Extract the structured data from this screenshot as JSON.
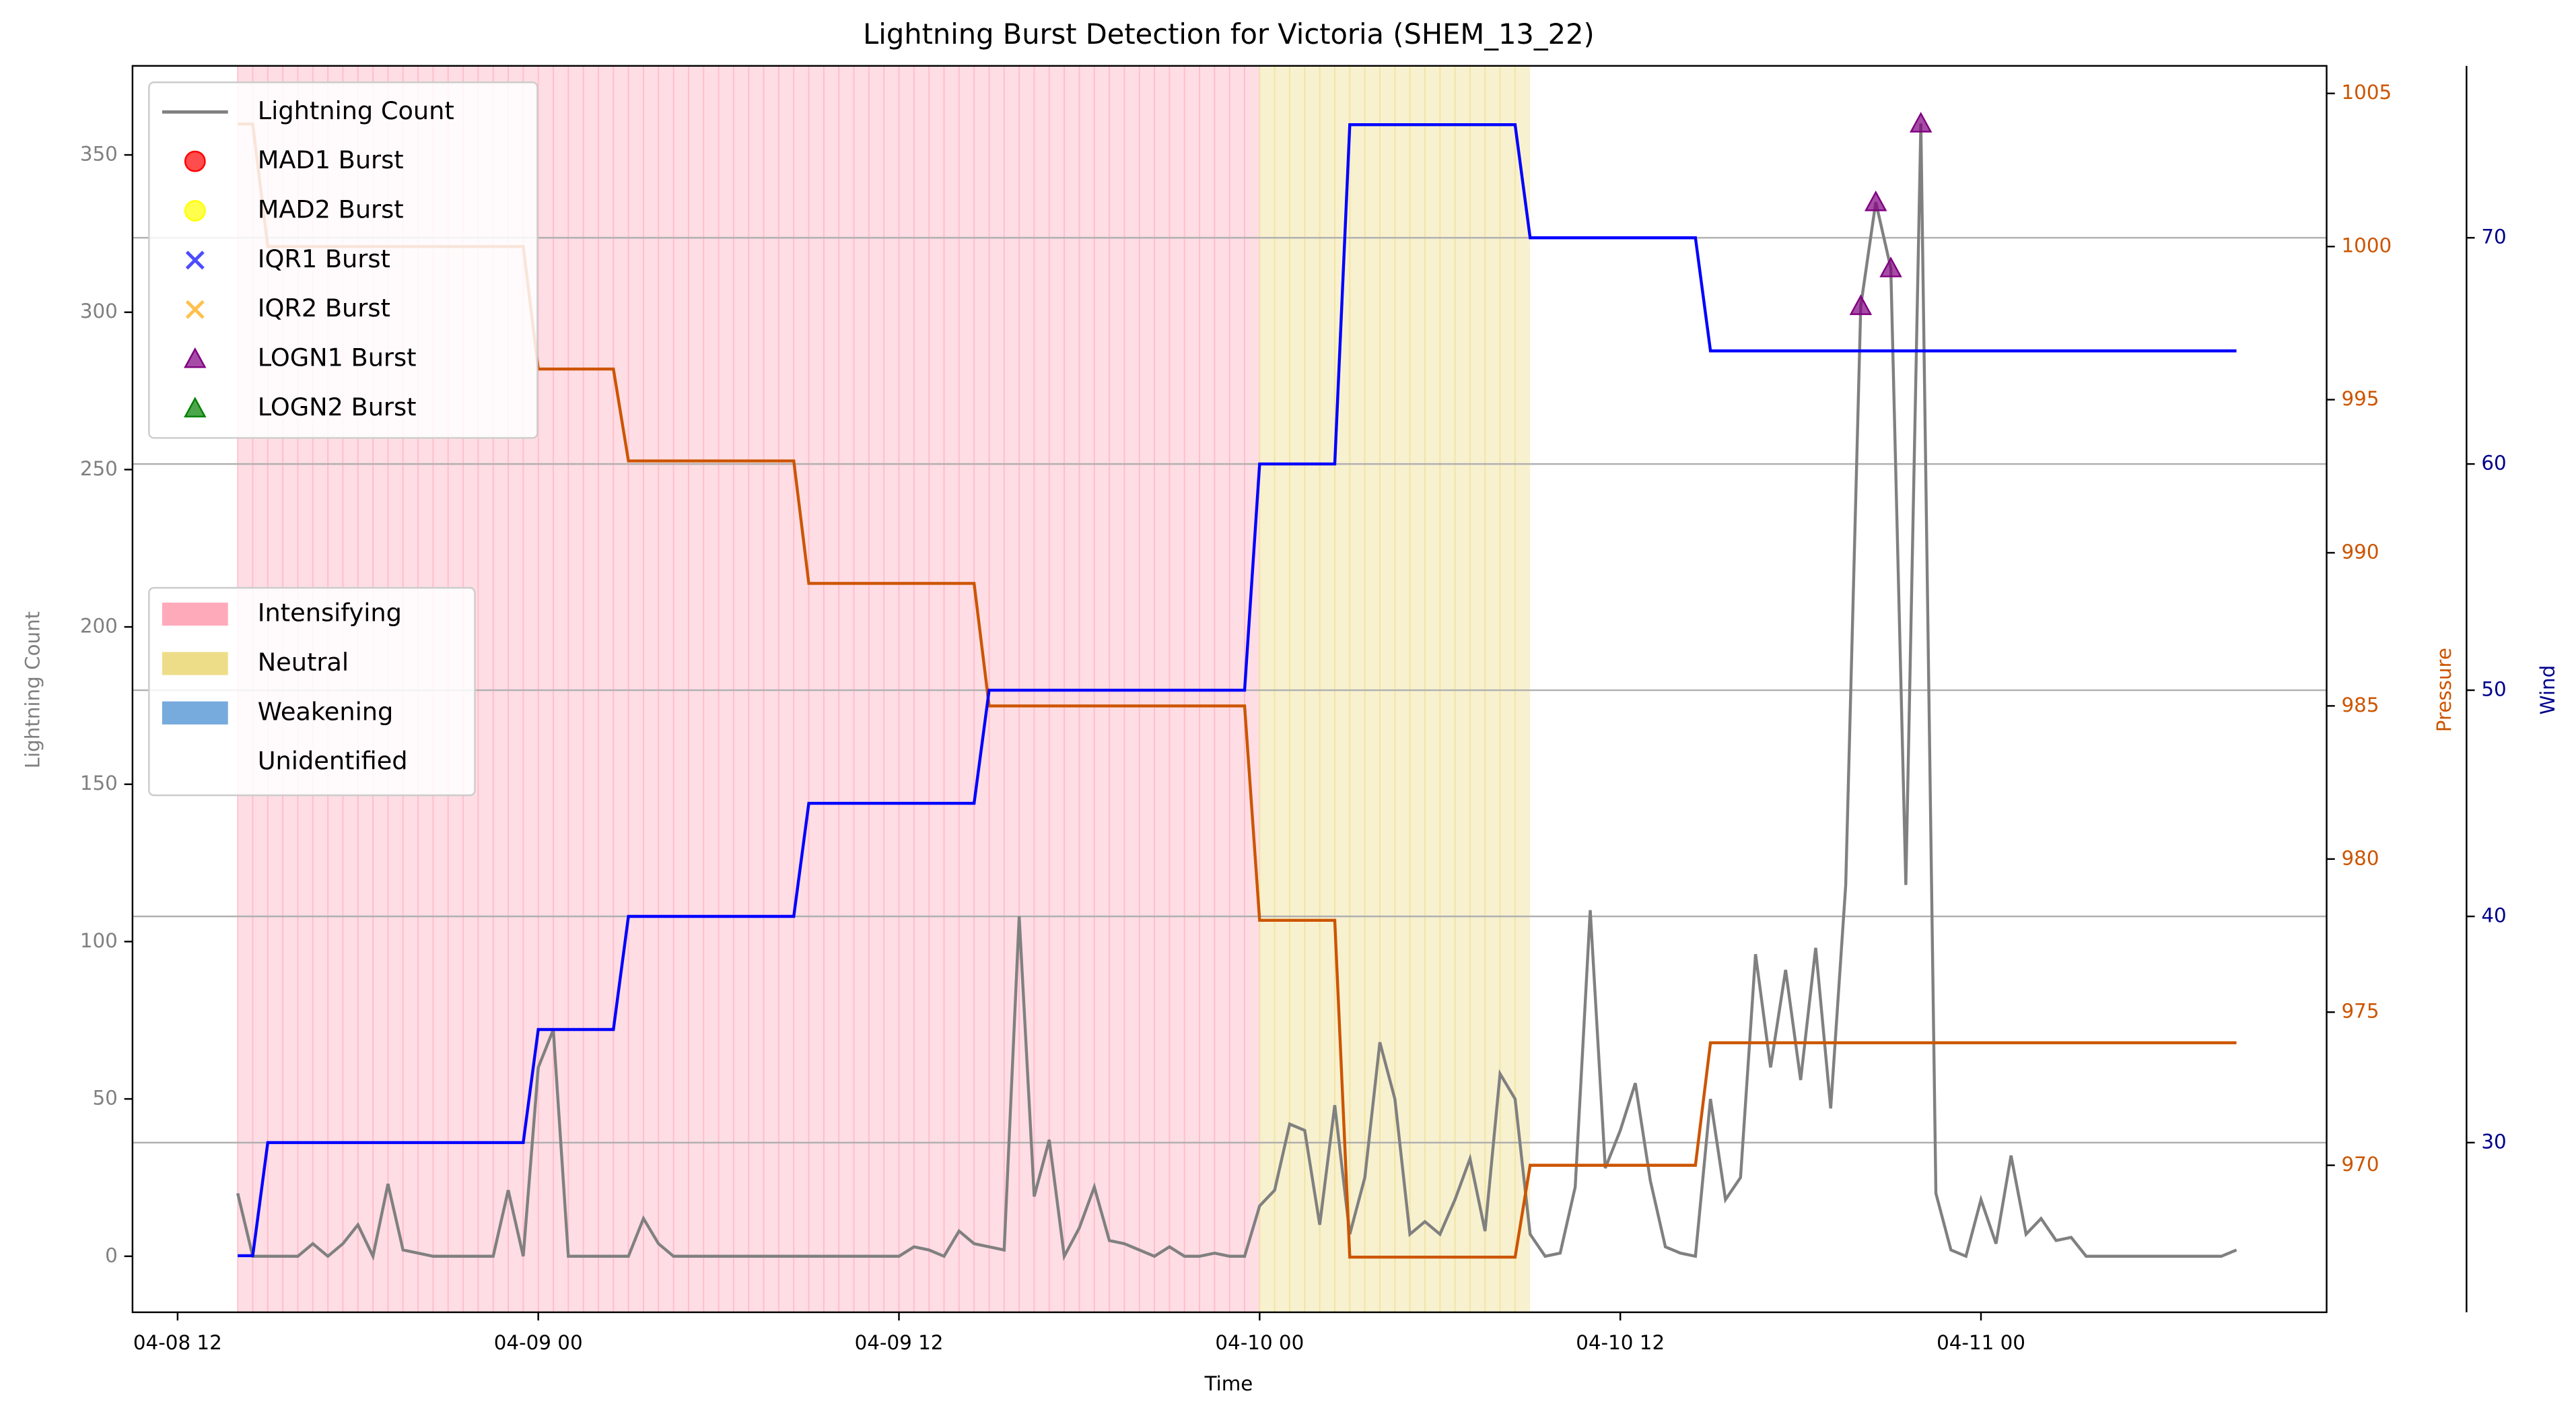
{
  "chart_data": {
    "type": "line",
    "title": "Lightning Burst Detection for Victoria (SHEM_13_22)",
    "xlabel": "Time",
    "ylabel": "Lightning Count",
    "y2label": "Pressure",
    "y3label": "Wind",
    "x": [
      "04-08 14:00",
      "04-08 14:30",
      "04-08 15:00",
      "04-08 15:30",
      "04-08 16:00",
      "04-08 16:30",
      "04-08 17:00",
      "04-08 17:30",
      "04-08 18:00",
      "04-08 18:30",
      "04-08 19:00",
      "04-08 19:30",
      "04-08 20:00",
      "04-08 20:30",
      "04-08 21:00",
      "04-08 21:30",
      "04-08 22:00",
      "04-08 22:30",
      "04-08 23:00",
      "04-08 23:30",
      "04-09 00:00",
      "04-09 00:30",
      "04-09 01:00",
      "04-09 01:30",
      "04-09 02:00",
      "04-09 02:30",
      "04-09 03:00",
      "04-09 03:30",
      "04-09 04:00",
      "04-09 04:30",
      "04-09 05:00",
      "04-09 05:30",
      "04-09 06:00",
      "04-09 06:30",
      "04-09 07:00",
      "04-09 07:30",
      "04-09 08:00",
      "04-09 08:30",
      "04-09 09:00",
      "04-09 09:30",
      "04-09 10:00",
      "04-09 10:30",
      "04-09 11:00",
      "04-09 11:30",
      "04-09 12:00",
      "04-09 12:30",
      "04-09 13:00",
      "04-09 13:30",
      "04-09 14:00",
      "04-09 14:30",
      "04-09 15:00",
      "04-09 15:30",
      "04-09 16:00",
      "04-09 16:30",
      "04-09 17:00",
      "04-09 17:30",
      "04-09 18:00",
      "04-09 18:30",
      "04-09 19:00",
      "04-09 19:30",
      "04-09 20:00",
      "04-09 20:30",
      "04-09 21:00",
      "04-09 21:30",
      "04-09 22:00",
      "04-09 22:30",
      "04-09 23:00",
      "04-09 23:30",
      "04-10 00:00",
      "04-10 00:30",
      "04-10 01:00",
      "04-10 01:30",
      "04-10 02:00",
      "04-10 02:30",
      "04-10 03:00",
      "04-10 03:30",
      "04-10 04:00",
      "04-10 04:30",
      "04-10 05:00",
      "04-10 05:30",
      "04-10 06:00",
      "04-10 06:30",
      "04-10 07:00",
      "04-10 07:30",
      "04-10 08:00",
      "04-10 08:30",
      "04-10 09:00",
      "04-10 09:30",
      "04-10 10:00",
      "04-10 10:30",
      "04-10 11:00",
      "04-10 11:30",
      "04-10 12:00",
      "04-10 12:30",
      "04-10 13:00",
      "04-10 13:30",
      "04-10 14:00",
      "04-10 14:30",
      "04-10 15:00",
      "04-10 15:30",
      "04-10 16:00",
      "04-10 16:30",
      "04-10 17:00",
      "04-10 17:30",
      "04-10 18:00",
      "04-10 18:30",
      "04-10 19:00",
      "04-10 19:30",
      "04-10 20:00",
      "04-10 20:30",
      "04-10 21:00",
      "04-10 21:30",
      "04-10 22:00",
      "04-10 22:30",
      "04-10 23:00",
      "04-10 23:30",
      "04-11 00:00",
      "04-11 00:30",
      "04-11 01:00",
      "04-11 01:30",
      "04-11 02:00",
      "04-11 02:30",
      "04-11 03:00",
      "04-11 03:30",
      "04-11 04:00",
      "04-11 04:30",
      "04-11 05:00",
      "04-11 05:30",
      "04-11 06:00",
      "04-11 06:30",
      "04-11 07:00",
      "04-11 07:30",
      "04-11 08:00",
      "04-11 08:30"
    ],
    "series": [
      {
        "name": "Lightning Count",
        "color": "#808080",
        "axis": "y",
        "values": [
          20,
          0,
          0,
          0,
          0,
          4,
          0,
          4,
          10,
          0,
          23,
          2,
          1,
          0,
          0,
          0,
          0,
          0,
          21,
          0,
          60,
          72,
          0,
          0,
          0,
          0,
          0,
          12,
          4,
          0,
          0,
          0,
          0,
          0,
          0,
          0,
          0,
          0,
          0,
          0,
          0,
          0,
          0,
          0,
          0,
          3,
          2,
          0,
          8,
          4,
          3,
          2,
          108,
          19,
          37,
          0,
          9,
          22,
          5,
          4,
          2,
          0,
          3,
          0,
          0,
          1,
          0,
          0,
          16,
          21,
          42,
          40,
          10,
          48,
          7,
          25,
          68,
          50,
          7,
          11,
          7,
          18,
          31,
          8,
          58,
          50,
          7,
          0,
          1,
          22,
          110,
          28,
          40,
          55,
          24,
          3,
          1,
          0,
          50,
          18,
          25,
          96,
          60,
          91,
          56,
          98,
          47,
          118,
          302,
          335,
          314,
          118,
          360,
          20,
          2,
          0,
          18,
          4,
          32,
          7,
          12,
          5,
          6,
          0,
          0,
          0,
          0,
          0,
          0,
          0,
          0,
          0,
          0,
          2
        ]
      },
      {
        "color": "#cc5500",
        "axis": "y2",
        "values": [
          1004,
          1004,
          1000,
          1000,
          1000,
          1000,
          1000,
          1000,
          1000,
          1000,
          1000,
          1000,
          1000,
          1000,
          1000,
          1000,
          1000,
          1000,
          1000,
          1000,
          996,
          996,
          996,
          996,
          996,
          996,
          993,
          993,
          993,
          993,
          993,
          993,
          993,
          993,
          993,
          993,
          993,
          993,
          989,
          989,
          989,
          989,
          989,
          989,
          989,
          989,
          989,
          989,
          989,
          989,
          985,
          985,
          985,
          985,
          985,
          985,
          985,
          985,
          985,
          985,
          985,
          985,
          985,
          985,
          985,
          985,
          985,
          985,
          978,
          978,
          978,
          978,
          978,
          978,
          967,
          967,
          967,
          967,
          967,
          967,
          967,
          967,
          967,
          967,
          967,
          967,
          970,
          970,
          970,
          970,
          970,
          970,
          970,
          970,
          970,
          970,
          970,
          970,
          974,
          974,
          974,
          974,
          974,
          974,
          974,
          974,
          974,
          974,
          974,
          974,
          974,
          974,
          974,
          974,
          974,
          974,
          974,
          974,
          974,
          974,
          974,
          974,
          974,
          974,
          974,
          974,
          974,
          974,
          974,
          974,
          974,
          974,
          974,
          974
        ]
      },
      {
        "color": "#0000ff",
        "axis": "y3",
        "values": [
          25,
          25,
          30,
          30,
          30,
          30,
          30,
          30,
          30,
          30,
          30,
          30,
          30,
          30,
          30,
          30,
          30,
          30,
          30,
          30,
          35,
          35,
          35,
          35,
          35,
          35,
          40,
          40,
          40,
          40,
          40,
          40,
          40,
          40,
          40,
          40,
          40,
          40,
          45,
          45,
          45,
          45,
          45,
          45,
          45,
          45,
          45,
          45,
          45,
          45,
          50,
          50,
          50,
          50,
          50,
          50,
          50,
          50,
          50,
          50,
          50,
          50,
          50,
          50,
          50,
          50,
          50,
          50,
          60,
          60,
          60,
          60,
          60,
          60,
          75,
          75,
          75,
          75,
          75,
          75,
          75,
          75,
          75,
          75,
          75,
          75,
          70,
          70,
          70,
          70,
          70,
          70,
          70,
          70,
          70,
          70,
          70,
          70,
          65,
          65,
          65,
          65,
          65,
          65,
          65,
          65,
          65,
          65,
          65,
          65,
          65,
          65,
          65,
          65,
          65,
          65,
          65,
          65,
          65,
          65,
          65,
          65,
          65,
          65,
          65,
          65,
          65,
          65,
          65,
          65,
          65,
          65,
          65,
          65
        ]
      }
    ],
    "bursts": [
      {
        "name": "MAD1 Burst",
        "color": "#ff0000",
        "marker": "o",
        "x": [],
        "values": []
      },
      {
        "name": "MAD2 Burst",
        "color": "#ffff00",
        "marker": "o",
        "x": [],
        "values": []
      },
      {
        "name": "IQR1 Burst",
        "color": "#0000ff",
        "marker": "x",
        "x": [],
        "values": []
      },
      {
        "name": "IQR2 Burst",
        "color": "#ffa500",
        "marker": "x",
        "x": [],
        "values": []
      },
      {
        "name": "LOGN1 Burst",
        "color": "#800080",
        "marker": "^",
        "x": [
          "04-10 20:00",
          "04-10 20:30",
          "04-10 21:00",
          "04-10 22:00"
        ],
        "values": [
          302,
          335,
          314,
          360
        ]
      },
      {
        "name": "LOGN2 Burst",
        "color": "#008000",
        "marker": "^",
        "x": [],
        "values": []
      }
    ],
    "phases": [
      {
        "name": "Intensifying",
        "color": "#ffaabb"
      },
      {
        "name": "Neutral",
        "color": "#eedd88"
      },
      {
        "name": "Weakening",
        "color": "#77aadd"
      },
      {
        "name": "Unidentified",
        "color": "#ffffff"
      }
    ],
    "phase_spans": [
      {
        "phase": "Intensifying",
        "start": "04-08 14:00",
        "end": "04-10 00:00"
      },
      {
        "phase": "Neutral",
        "start": "04-10 00:00",
        "end": "04-10 09:00"
      }
    ],
    "xlim": [
      "04-08 10:30",
      "04-11 11:30"
    ],
    "xticks": [
      "04-08 12",
      "04-09 00",
      "04-09 12",
      "04-10 00",
      "04-10 12",
      "04-11 00"
    ],
    "ylim": [
      -17.8,
      378.3
    ],
    "yticks": [
      0,
      50,
      100,
      150,
      200,
      250,
      300,
      350
    ],
    "y2lim": [
      965.2,
      1005.9
    ],
    "y2ticks": [
      970,
      975,
      980,
      985,
      990,
      995,
      1000,
      1005
    ],
    "y3lim": [
      22.5,
      77.6
    ],
    "y3ticks": [
      30,
      40,
      50,
      60,
      70
    ],
    "y3_grid": true
  }
}
